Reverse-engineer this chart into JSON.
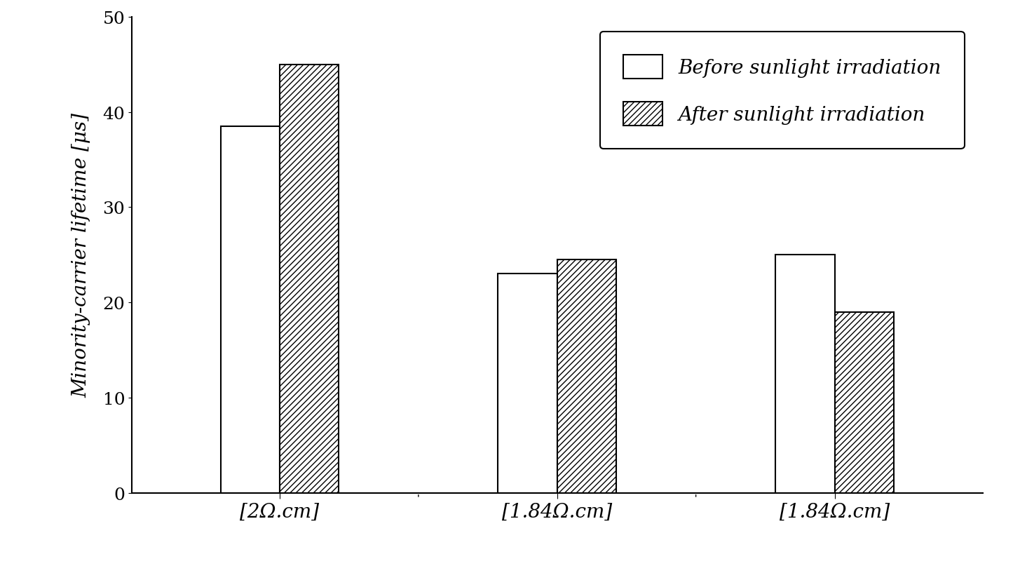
{
  "groups": [
    "[2Ω.cm]",
    "[1.84Ω.cm]",
    "[1.84Ω.cm]"
  ],
  "before": [
    38.5,
    23.0,
    25.0
  ],
  "after": [
    45.0,
    24.5,
    19.0
  ],
  "ylabel": "Minority-carrier lifetime [μs]",
  "ylim": [
    0,
    50
  ],
  "yticks": [
    0,
    10,
    20,
    30,
    40,
    50
  ],
  "legend_before": "Before sunlight irradiation",
  "legend_after": "After sunlight irradiation",
  "bar_width": 0.32,
  "background_color": "#ffffff",
  "bar_color_before": "#ffffff",
  "bar_edgecolor": "#000000",
  "hatch_after": "////",
  "axis_fontsize": 20,
  "tick_fontsize": 18,
  "legend_fontsize": 20,
  "ylabel_fontsize": 20,
  "xlabel_fontsize": 20
}
